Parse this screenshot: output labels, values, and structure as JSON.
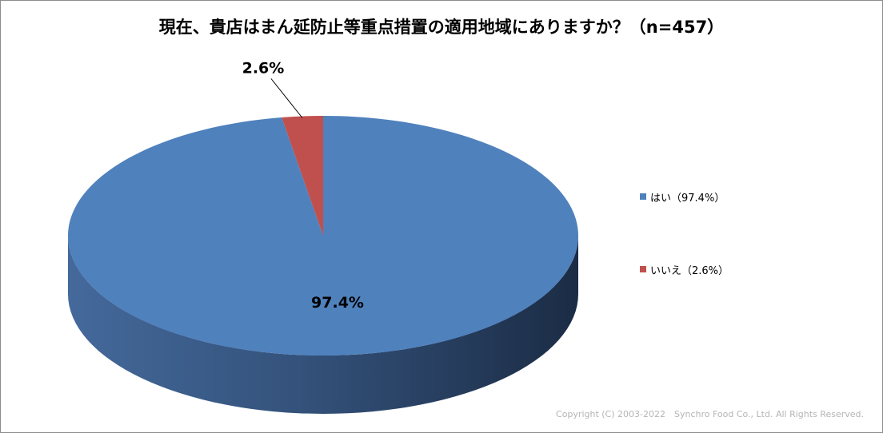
{
  "title": "現在、貴店はまん延防止等重点措置の適用地域にありますか？（n=457）",
  "chart_data": {
    "type": "pie",
    "categories": [
      "はい",
      "いいえ"
    ],
    "values": [
      97.4,
      2.6
    ],
    "data_labels": [
      "97.4%",
      "2.6%"
    ],
    "legend": [
      "はい（97.4%）",
      "いいえ（2.6%）"
    ],
    "colors": [
      "#4f81bd",
      "#c0504d"
    ],
    "legend_position": "right",
    "style": "3d-pie"
  },
  "copyright": "Copyright (C) 2003-2022　Synchro Food Co., Ltd. All Rights Reserved."
}
